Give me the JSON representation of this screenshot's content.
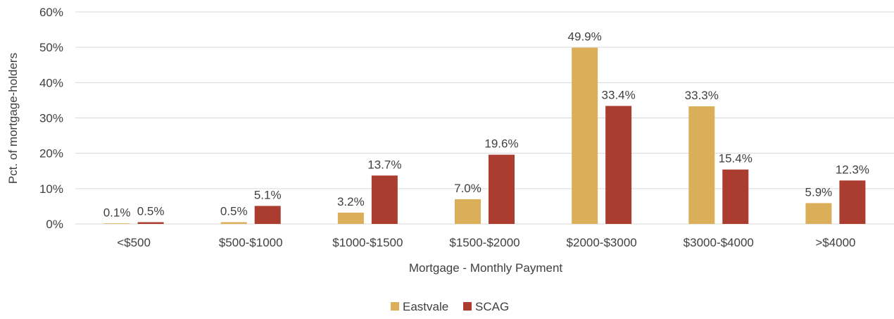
{
  "chart_data": {
    "type": "bar",
    "categories": [
      "<$500",
      "$500-$1000",
      "$1000-$1500",
      "$1500-$2000",
      "$2000-$3000",
      "$3000-$4000",
      ">$4000"
    ],
    "series": [
      {
        "name": "Eastvale",
        "values": [
          0.1,
          0.5,
          3.2,
          7.0,
          49.9,
          33.3,
          5.9
        ],
        "labels": [
          "0.1%",
          "0.5%",
          "3.2%",
          "7.0%",
          "49.9%",
          "33.3%",
          "5.9%"
        ],
        "color": "#dbaf59"
      },
      {
        "name": "SCAG",
        "values": [
          0.5,
          5.1,
          13.7,
          19.6,
          33.4,
          15.4,
          12.3
        ],
        "labels": [
          "0.5%",
          "5.1%",
          "13.7%",
          "19.6%",
          "33.4%",
          "15.4%",
          "12.3%"
        ],
        "color": "#ab3c30"
      }
    ],
    "xlabel": "Mortgage - Monthly Payment",
    "ylabel": "Pct. of mortgage-holders",
    "ylim": [
      0,
      60
    ],
    "yticks": [
      0,
      10,
      20,
      30,
      40,
      50,
      60
    ],
    "ytick_labels": [
      "0%",
      "10%",
      "20%",
      "30%",
      "40%",
      "50%",
      "60%"
    ],
    "grid": true,
    "legend_position": "bottom"
  }
}
